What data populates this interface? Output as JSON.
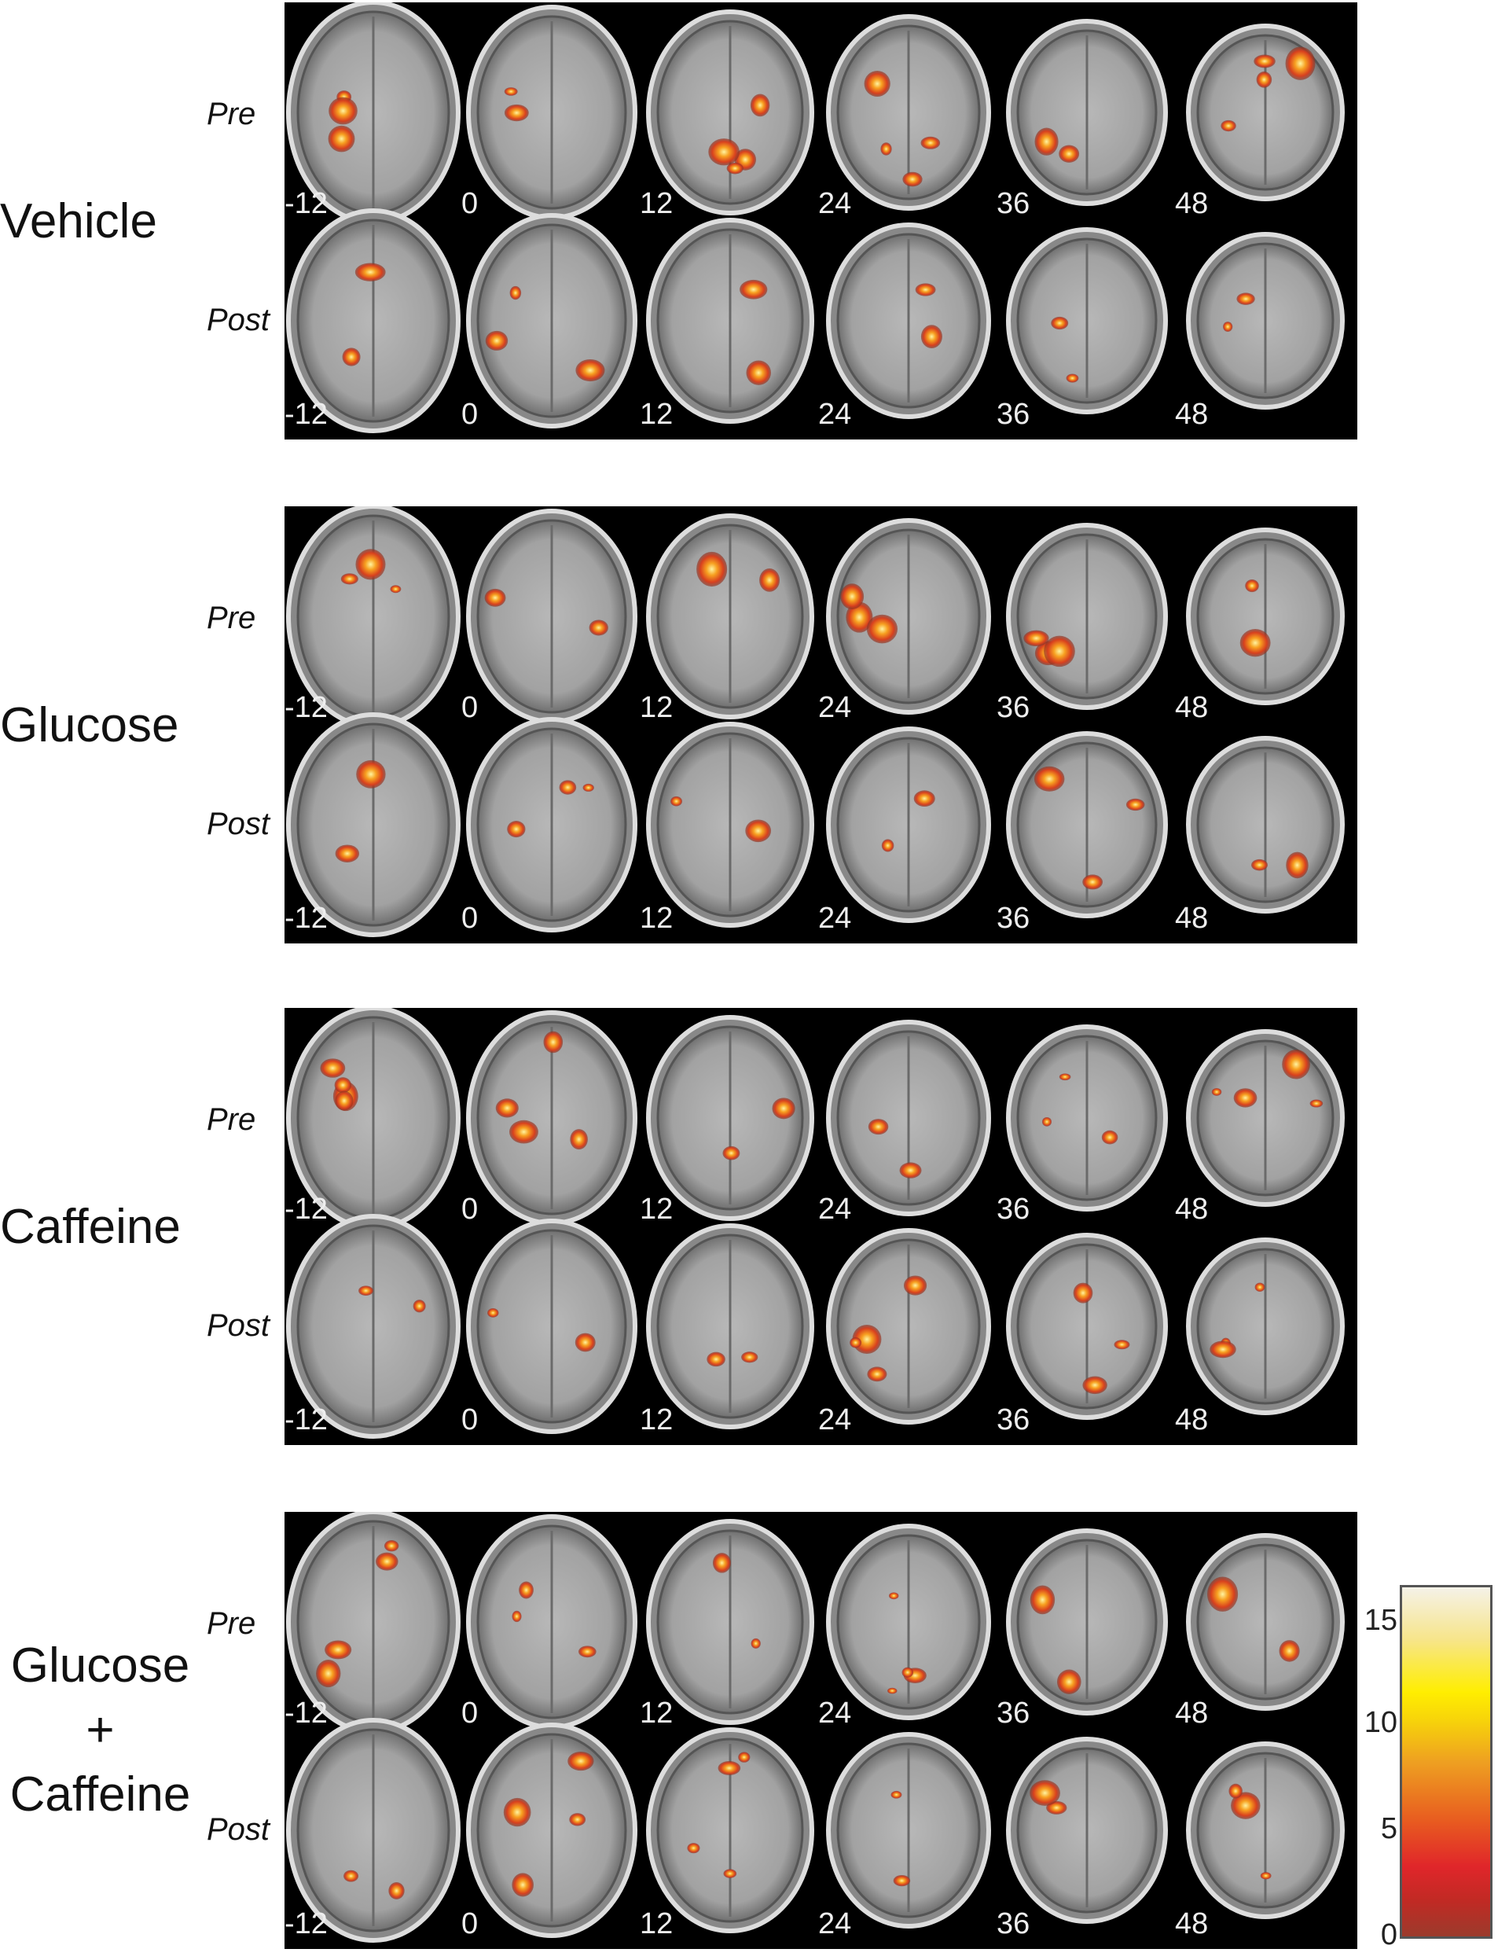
{
  "groups": [
    {
      "label": "Vehicle",
      "rows": [
        "Pre",
        "Post"
      ]
    },
    {
      "label": "Glucose",
      "rows": [
        "Pre",
        "Post"
      ]
    },
    {
      "label": "Caffeine",
      "rows": [
        "Pre",
        "Post"
      ]
    },
    {
      "label_lines": [
        "Glucose",
        "+",
        "Caffeine"
      ],
      "rows": [
        "Pre",
        "Post"
      ]
    }
  ],
  "slice_levels": [
    "-12",
    "0",
    "12",
    "24",
    "36",
    "48"
  ],
  "colorbar": {
    "ticks": [
      "15",
      "10",
      "5",
      "0"
    ],
    "range": [
      0,
      16
    ],
    "colors": [
      "#9b3b2c",
      "#e0262a",
      "#eea021",
      "#ffee00",
      "#f5f2e8"
    ]
  },
  "background_color": "#000000"
}
